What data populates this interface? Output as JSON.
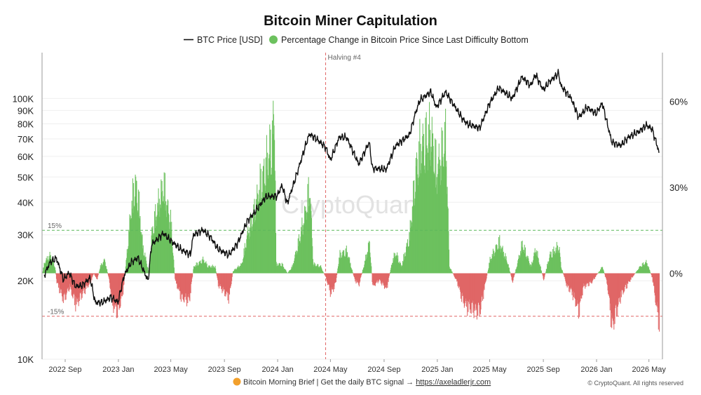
{
  "chart_data": {
    "type": "line",
    "title": "Bitcoin Miner Capitulation",
    "legend": {
      "placement": "top-center",
      "items": [
        {
          "label": "BTC Price [USD]",
          "marker": "line",
          "color": "#111111"
        },
        {
          "label": "Percentage Change in Bitcoin Price Since Last Difficulty Bottom",
          "marker": "circle",
          "color": "#6cc15e"
        }
      ]
    },
    "watermark": "CryptoQuant",
    "x_axis": {
      "type": "date",
      "range": [
        "2022-07-10",
        "2026-06-01"
      ],
      "ticks": [
        {
          "label": "2022 Sep",
          "date": "2022-09-01"
        },
        {
          "label": "2023 Jan",
          "date": "2023-01-01"
        },
        {
          "label": "2023 May",
          "date": "2023-05-01"
        },
        {
          "label": "2023 Sep",
          "date": "2023-09-01"
        },
        {
          "label": "2024 Jan",
          "date": "2024-01-01"
        },
        {
          "label": "2024 May",
          "date": "2024-05-01"
        },
        {
          "label": "2024 Sep",
          "date": "2024-09-01"
        },
        {
          "label": "2025 Jan",
          "date": "2025-01-01"
        },
        {
          "label": "2025 May",
          "date": "2025-05-01"
        },
        {
          "label": "2025 Sep",
          "date": "2025-09-01"
        },
        {
          "label": "2026 Jan",
          "date": "2026-01-01"
        },
        {
          "label": "2026 May",
          "date": "2026-05-01"
        }
      ]
    },
    "y_left": {
      "scale": "log",
      "range": [
        10000,
        150000
      ],
      "ticks": [
        {
          "label": "10K",
          "value": 10000
        },
        {
          "label": "20K",
          "value": 20000
        },
        {
          "label": "30K",
          "value": 30000
        },
        {
          "label": "40K",
          "value": 40000
        },
        {
          "label": "50K",
          "value": 50000
        },
        {
          "label": "60K",
          "value": 60000
        },
        {
          "label": "70K",
          "value": 70000
        },
        {
          "label": "80K",
          "value": 80000
        },
        {
          "label": "90K",
          "value": 90000
        },
        {
          "label": "100K",
          "value": 100000
        }
      ]
    },
    "y_right": {
      "scale": "linear",
      "range": [
        -30,
        77
      ],
      "ticks": [
        {
          "label": "0%",
          "value": 0
        },
        {
          "label": "30%",
          "value": 30
        },
        {
          "label": "60%",
          "value": 60
        }
      ]
    },
    "grid": "horizontal",
    "reference_lines": [
      {
        "label": "15%",
        "value": 15,
        "axis": "right",
        "color": "#5cb85c",
        "style": "dashed"
      },
      {
        "label": "-15%",
        "value": -15,
        "axis": "right",
        "color": "#e06666",
        "style": "dashed"
      }
    ],
    "event_lines": [
      {
        "label": "Halving #4",
        "date": "2024-04-20",
        "color": "#e06666",
        "style": "dashed"
      }
    ],
    "series": [
      {
        "name": "BTC Price [USD]",
        "axis": "left",
        "color": "#111111",
        "points": [
          [
            "2022-07-15",
            21000
          ],
          [
            "2022-07-28",
            23500
          ],
          [
            "2022-08-12",
            24400
          ],
          [
            "2022-08-28",
            20200
          ],
          [
            "2022-09-10",
            21500
          ],
          [
            "2022-09-25",
            19000
          ],
          [
            "2022-10-10",
            19200
          ],
          [
            "2022-10-28",
            20500
          ],
          [
            "2022-11-09",
            16500
          ],
          [
            "2022-11-25",
            16500
          ],
          [
            "2022-12-15",
            17300
          ],
          [
            "2022-12-31",
            16550
          ],
          [
            "2023-01-14",
            20900
          ],
          [
            "2023-01-30",
            23500
          ],
          [
            "2023-02-15",
            24500
          ],
          [
            "2023-03-10",
            20000
          ],
          [
            "2023-03-18",
            27500
          ],
          [
            "2023-04-14",
            30400
          ],
          [
            "2023-05-01",
            28500
          ],
          [
            "2023-05-25",
            26300
          ],
          [
            "2023-06-15",
            25200
          ],
          [
            "2023-06-22",
            30000
          ],
          [
            "2023-07-14",
            31300
          ],
          [
            "2023-08-01",
            29300
          ],
          [
            "2023-08-17",
            26500
          ],
          [
            "2023-09-11",
            25100
          ],
          [
            "2023-10-01",
            27800
          ],
          [
            "2023-10-24",
            34000
          ],
          [
            "2023-11-09",
            36500
          ],
          [
            "2023-12-05",
            42000
          ],
          [
            "2023-12-31",
            42300
          ],
          [
            "2024-01-11",
            46500
          ],
          [
            "2024-01-23",
            39500
          ],
          [
            "2024-02-15",
            52000
          ],
          [
            "2024-03-05",
            66000
          ],
          [
            "2024-03-14",
            73100
          ],
          [
            "2024-04-01",
            69500
          ],
          [
            "2024-04-20",
            65000
          ],
          [
            "2024-05-01",
            58000
          ],
          [
            "2024-05-21",
            71000
          ],
          [
            "2024-06-07",
            71000
          ],
          [
            "2024-07-05",
            56000
          ],
          [
            "2024-07-29",
            68000
          ],
          [
            "2024-08-05",
            54000
          ],
          [
            "2024-09-06",
            53500
          ],
          [
            "2024-09-27",
            65800
          ],
          [
            "2024-10-29",
            72500
          ],
          [
            "2024-11-12",
            88000
          ],
          [
            "2024-11-22",
            98500
          ],
          [
            "2024-12-17",
            106000
          ],
          [
            "2024-12-30",
            92500
          ],
          [
            "2025-01-20",
            106000
          ],
          [
            "2025-02-27",
            84000
          ],
          [
            "2025-03-10",
            80000
          ],
          [
            "2025-04-08",
            77000
          ],
          [
            "2025-05-01",
            96000
          ],
          [
            "2025-05-22",
            110000
          ],
          [
            "2025-06-22",
            100000
          ],
          [
            "2025-07-14",
            121000
          ],
          [
            "2025-08-03",
            112000
          ],
          [
            "2025-08-14",
            123500
          ],
          [
            "2025-09-01",
            108000
          ],
          [
            "2025-09-15",
            116000
          ],
          [
            "2025-10-06",
            125000
          ],
          [
            "2025-10-11",
            112000
          ],
          [
            "2025-11-04",
            100000
          ],
          [
            "2025-11-21",
            84500
          ],
          [
            "2025-12-10",
            92500
          ],
          [
            "2025-12-31",
            87500
          ],
          [
            "2026-01-14",
            96000
          ],
          [
            "2026-02-05",
            68000
          ],
          [
            "2026-02-25",
            66000
          ],
          [
            "2026-03-15",
            71000
          ],
          [
            "2026-04-10",
            75000
          ],
          [
            "2026-04-25",
            79000
          ],
          [
            "2026-05-08",
            76500
          ],
          [
            "2026-05-20",
            66000
          ],
          [
            "2026-05-24",
            62000
          ]
        ]
      },
      {
        "name": "Percentage Change in Bitcoin Price Since Last Difficulty Bottom",
        "type": "area",
        "axis": "right",
        "color_positive": "#6cc15e",
        "color_negative": "#e06666",
        "points": [
          [
            "2022-07-10",
            0
          ],
          [
            "2022-07-15",
            5
          ],
          [
            "2022-07-28",
            8
          ],
          [
            "2022-08-08",
            3
          ],
          [
            "2022-08-12",
            -4
          ],
          [
            "2022-08-28",
            -12
          ],
          [
            "2022-09-10",
            -6
          ],
          [
            "2022-09-25",
            -14
          ],
          [
            "2022-10-10",
            -9
          ],
          [
            "2022-10-28",
            -4
          ],
          [
            "2022-11-05",
            0
          ],
          [
            "2022-11-12",
            -3
          ],
          [
            "2022-11-20",
            3
          ],
          [
            "2022-11-30",
            6
          ],
          [
            "2022-12-10",
            -3
          ],
          [
            "2022-12-18",
            -14
          ],
          [
            "2022-12-31",
            -17
          ],
          [
            "2023-01-10",
            -9
          ],
          [
            "2023-01-14",
            -3
          ],
          [
            "2023-01-18",
            5
          ],
          [
            "2023-01-30",
            30
          ],
          [
            "2023-02-08",
            40
          ],
          [
            "2023-02-15",
            33
          ],
          [
            "2023-02-25",
            12
          ],
          [
            "2023-03-08",
            3
          ],
          [
            "2023-03-12",
            0
          ],
          [
            "2023-03-18",
            18
          ],
          [
            "2023-04-01",
            30
          ],
          [
            "2023-04-14",
            39
          ],
          [
            "2023-04-25",
            27
          ],
          [
            "2023-05-01",
            22
          ],
          [
            "2023-05-10",
            -3
          ],
          [
            "2023-05-25",
            -11
          ],
          [
            "2023-06-12",
            -12
          ],
          [
            "2023-06-22",
            3
          ],
          [
            "2023-07-14",
            6
          ],
          [
            "2023-07-25",
            3
          ],
          [
            "2023-08-10",
            3
          ],
          [
            "2023-08-17",
            -5
          ],
          [
            "2023-09-11",
            -11
          ],
          [
            "2023-09-20",
            1
          ],
          [
            "2023-10-10",
            4
          ],
          [
            "2023-10-24",
            18
          ],
          [
            "2023-11-05",
            25
          ],
          [
            "2023-11-20",
            38
          ],
          [
            "2023-12-05",
            48
          ],
          [
            "2023-12-18",
            58
          ],
          [
            "2023-12-24",
            72
          ],
          [
            "2023-12-28",
            4
          ],
          [
            "2024-01-10",
            4
          ],
          [
            "2024-01-23",
            0
          ],
          [
            "2024-02-03",
            3
          ],
          [
            "2024-02-15",
            12
          ],
          [
            "2024-03-01",
            24
          ],
          [
            "2024-03-14",
            38
          ],
          [
            "2024-03-22",
            4
          ],
          [
            "2024-04-08",
            3
          ],
          [
            "2024-04-20",
            -2
          ],
          [
            "2024-05-01",
            -9
          ],
          [
            "2024-05-12",
            -5
          ],
          [
            "2024-05-21",
            8
          ],
          [
            "2024-06-07",
            10
          ],
          [
            "2024-06-25",
            -3
          ],
          [
            "2024-07-05",
            -5
          ],
          [
            "2024-07-18",
            5
          ],
          [
            "2024-07-29",
            14
          ],
          [
            "2024-08-05",
            -6
          ],
          [
            "2024-08-20",
            -3
          ],
          [
            "2024-09-06",
            -7
          ],
          [
            "2024-09-20",
            6
          ],
          [
            "2024-09-27",
            9
          ],
          [
            "2024-10-10",
            3
          ],
          [
            "2024-10-29",
            17
          ],
          [
            "2024-11-12",
            45
          ],
          [
            "2024-11-22",
            55
          ],
          [
            "2024-12-17",
            62
          ],
          [
            "2024-12-30",
            45
          ],
          [
            "2025-01-20",
            60
          ],
          [
            "2025-01-28",
            3
          ],
          [
            "2025-02-15",
            -4
          ],
          [
            "2025-02-27",
            -12
          ],
          [
            "2025-03-10",
            -15
          ],
          [
            "2025-04-08",
            -17
          ],
          [
            "2025-04-20",
            -5
          ],
          [
            "2025-05-01",
            6
          ],
          [
            "2025-05-22",
            14
          ],
          [
            "2025-06-10",
            5
          ],
          [
            "2025-06-22",
            -4
          ],
          [
            "2025-07-14",
            13
          ],
          [
            "2025-08-03",
            3
          ],
          [
            "2025-08-14",
            11
          ],
          [
            "2025-09-01",
            -3
          ],
          [
            "2025-09-15",
            8
          ],
          [
            "2025-10-06",
            12
          ],
          [
            "2025-10-11",
            3
          ],
          [
            "2025-10-25",
            -6
          ],
          [
            "2025-11-04",
            -8
          ],
          [
            "2025-11-21",
            -17
          ],
          [
            "2025-12-01",
            -6
          ],
          [
            "2025-12-20",
            -4
          ],
          [
            "2026-01-14",
            3
          ],
          [
            "2026-01-25",
            -5
          ],
          [
            "2026-02-05",
            -24
          ],
          [
            "2026-02-25",
            -10
          ],
          [
            "2026-03-15",
            -4
          ],
          [
            "2026-04-10",
            3
          ],
          [
            "2026-04-25",
            5
          ],
          [
            "2026-05-08",
            -2
          ],
          [
            "2026-05-20",
            -18
          ],
          [
            "2026-05-24",
            -22
          ],
          [
            "2026-05-25",
            0
          ]
        ]
      }
    ]
  },
  "footer": {
    "text": "Bitcoin Morning Brief | Get the daily BTC signal → ",
    "link": "https://axeladlerjr.com"
  },
  "copyright": "© CryptoQuant. All rights reserved"
}
